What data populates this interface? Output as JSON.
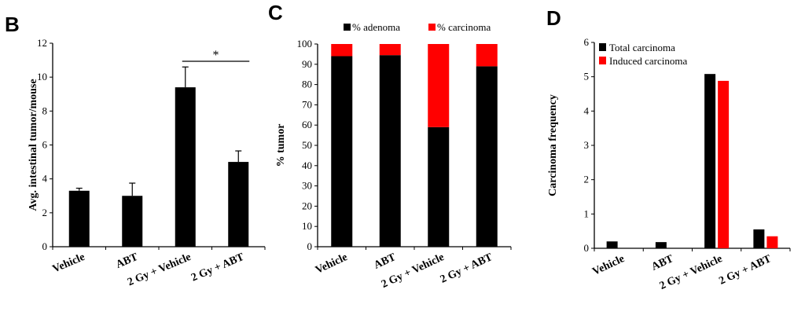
{
  "chart_data": [
    {
      "panel": "B",
      "type": "bar",
      "ylabel": "Avg. intestinal tumor/mouse",
      "ylim": [
        0,
        12
      ],
      "yticks": [
        0,
        2,
        4,
        6,
        8,
        10,
        12
      ],
      "categories": [
        "Vehicle",
        "ABT",
        "2 Gy + Vehicle",
        "2 Gy + ABT"
      ],
      "values": [
        3.3,
        3.0,
        9.4,
        5.0
      ],
      "errors": [
        0.15,
        0.75,
        1.2,
        0.65
      ],
      "bar_color": "#000000",
      "significance": {
        "label": "*",
        "between": [
          2,
          3
        ]
      }
    },
    {
      "panel": "C",
      "type": "bar",
      "stacked": true,
      "ylabel": "% tumor",
      "ylim": [
        0,
        100
      ],
      "yticks": [
        0,
        10,
        20,
        30,
        40,
        50,
        60,
        70,
        80,
        90,
        100
      ],
      "categories": [
        "Vehicle",
        "ABT",
        "2 Gy + Vehicle",
        "2 Gy + ABT"
      ],
      "series": [
        {
          "name": "% adenoma",
          "color": "#000000",
          "values": [
            94,
            94.5,
            59,
            89
          ]
        },
        {
          "name": "% carcinoma",
          "color": "#ff0000",
          "values": [
            6,
            5.5,
            41,
            11
          ]
        }
      ],
      "legend": "top"
    },
    {
      "panel": "D",
      "type": "bar",
      "ylabel": "Carcinoma frequency",
      "ylim": [
        0,
        6
      ],
      "yticks": [
        0,
        1,
        2,
        3,
        4,
        5,
        6
      ],
      "categories": [
        "Vehicle",
        "ABT",
        "2 Gy + Vehicle",
        "2 Gy + ABT"
      ],
      "series": [
        {
          "name": "Total carcinoma",
          "color": "#000000",
          "values": [
            0.2,
            0.18,
            5.08,
            0.55
          ]
        },
        {
          "name": "Induced carcinoma",
          "color": "#ff0000",
          "values": [
            0,
            0,
            4.88,
            0.35
          ]
        }
      ],
      "legend": "top-left"
    }
  ]
}
